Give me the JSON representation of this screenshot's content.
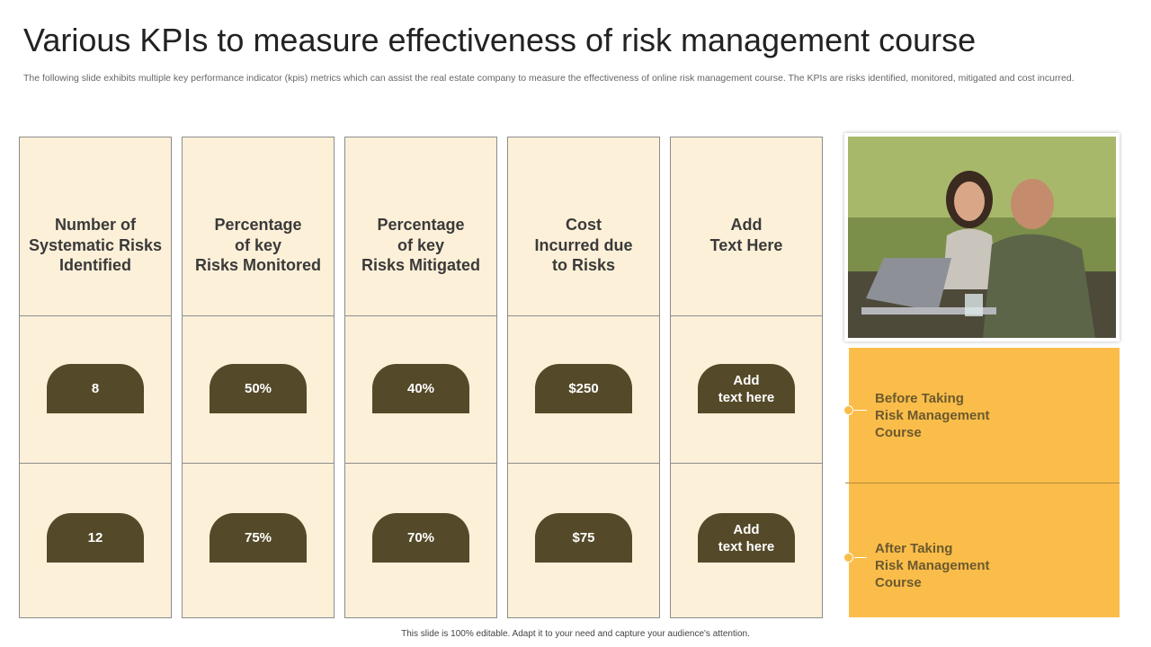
{
  "title": "Various KPIs to measure effectiveness of risk management course",
  "subtitle": "The following slide exhibits multiple key performance indicator (kpis) metrics which can assist the real estate company to measure the effectiveness of online risk management course. The KPIs are risks identified, monitored, mitigated and cost incurred.",
  "columns": [
    {
      "header": "Number of\nSystematic Risks\nIdentified",
      "before": "8",
      "after": "12"
    },
    {
      "header": "Percentage\nof key\nRisks Monitored",
      "before": "50%",
      "after": "75%"
    },
    {
      "header": "Percentage\nof key\nRisks Mitigated",
      "before": "40%",
      "after": "70%"
    },
    {
      "header": "Cost\nIncurred due\nto Risks",
      "before": "$250",
      "after": "$75"
    },
    {
      "header": "Add\nText Here",
      "before": "Add\ntext here",
      "after": "Add\ntext here"
    }
  ],
  "side": {
    "before": "Before Taking\nRisk Management\nCourse",
    "after": "After Taking\nRisk Management\nCourse"
  },
  "footer": "This slide is 100% editable.  Adapt it to your need and capture your audience's attention."
}
